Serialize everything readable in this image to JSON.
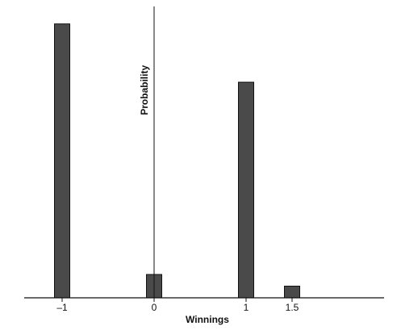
{
  "chart_data": {
    "type": "bar",
    "title": "",
    "xlabel": "Winnings",
    "ylabel": "Probability",
    "x_ticks": [
      {
        "value": -1,
        "label": "–1"
      },
      {
        "value": 0,
        "label": "0"
      },
      {
        "value": 1,
        "label": "1"
      },
      {
        "value": 1.5,
        "label": "1.5"
      }
    ],
    "bars": [
      {
        "x": -1,
        "probability": 0.47
      },
      {
        "x": 0,
        "probability": 0.04
      },
      {
        "x": 1,
        "probability": 0.37
      },
      {
        "x": 1.5,
        "probability": 0.02
      }
    ],
    "xlim": [
      -1.5,
      2.05
    ],
    "ylim": [
      0,
      0.5
    ],
    "y_ticks_shown": false,
    "grid": false,
    "legend": false,
    "bar_color": "#4a4a4a",
    "bar_edge_color": "#111111",
    "axis_color": "#111111"
  }
}
